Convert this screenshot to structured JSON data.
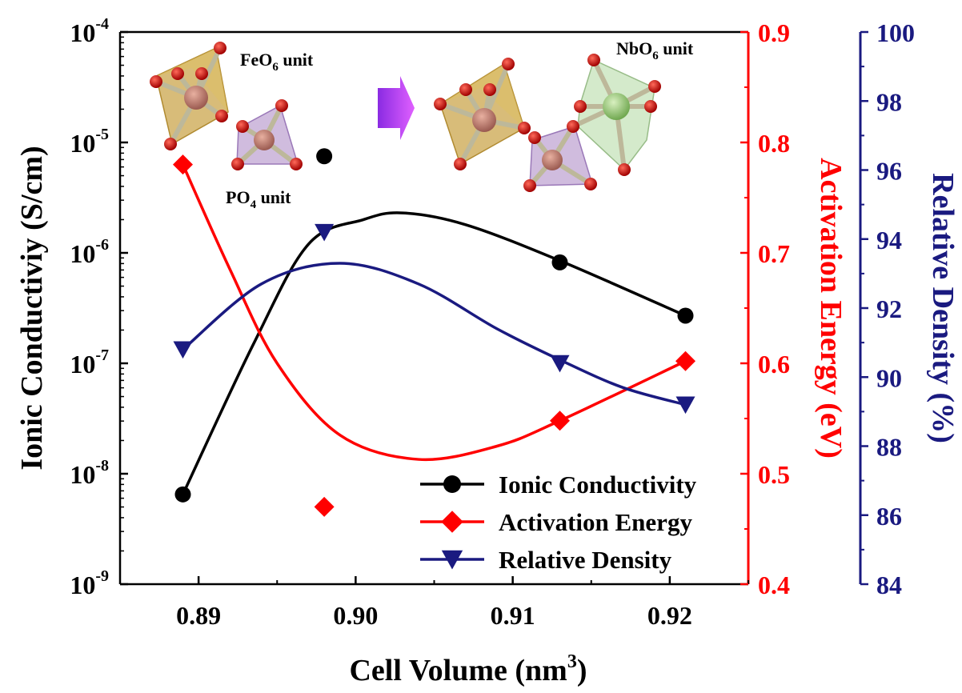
{
  "chart_data": {
    "type": "line",
    "xlabel": "Cell Volume (nm",
    "xlabel_sup": "3",
    "xlabel_end": ")",
    "xlim": [
      0.885,
      0.925
    ],
    "x_ticks": [
      "0.89",
      "0.90",
      "0.91",
      "0.92"
    ],
    "x_tick_values": [
      0.89,
      0.9,
      0.91,
      0.92
    ],
    "y_left": {
      "label": "Ionic Conductiviy (S/cm)",
      "scale": "log",
      "lim": [
        1e-09,
        0.0001
      ],
      "ticks": [
        {
          "base": "10",
          "exp": "-9",
          "value": 1e-09
        },
        {
          "base": "10",
          "exp": "-8",
          "value": 1e-08
        },
        {
          "base": "10",
          "exp": "-7",
          "value": 1e-07
        },
        {
          "base": "10",
          "exp": "-6",
          "value": 1e-06
        },
        {
          "base": "10",
          "exp": "-5",
          "value": 1e-05
        },
        {
          "base": "10",
          "exp": "-4",
          "value": 0.0001
        }
      ],
      "color": "#000000"
    },
    "y_right1": {
      "label": "Activation Energy (eV)",
      "lim": [
        0.4,
        0.9
      ],
      "ticks": [
        "0.4",
        "0.5",
        "0.6",
        "0.7",
        "0.8",
        "0.9"
      ],
      "tick_values": [
        0.4,
        0.5,
        0.6,
        0.7,
        0.8,
        0.9
      ],
      "color": "#ff0000"
    },
    "y_right2": {
      "label": "Relative Density (%)",
      "lim": [
        84,
        100
      ],
      "ticks": [
        "84",
        "86",
        "88",
        "90",
        "92",
        "94",
        "96",
        "98",
        "100"
      ],
      "tick_values": [
        84,
        86,
        88,
        90,
        92,
        94,
        96,
        98,
        100
      ],
      "color": "#1a1a80"
    },
    "series": [
      {
        "name": "Ionic Conductivity",
        "axis": "left",
        "marker": "circle",
        "color": "#000000",
        "points": [
          {
            "x": 0.889,
            "y": 6.5e-09
          },
          {
            "x": 0.898,
            "y": 7.5e-06
          },
          {
            "x": 0.913,
            "y": 8.2e-07
          },
          {
            "x": 0.921,
            "y": 2.7e-07
          }
        ],
        "fit_curve": [
          {
            "x": 0.889,
            "y": 6.5e-09
          },
          {
            "x": 0.8935,
            "y": 1.5e-07
          },
          {
            "x": 0.897,
            "y": 1.2e-06
          },
          {
            "x": 0.9005,
            "y": 2e-06
          },
          {
            "x": 0.903,
            "y": 2.3e-06
          },
          {
            "x": 0.907,
            "y": 1.8e-06
          },
          {
            "x": 0.913,
            "y": 8.5e-07
          },
          {
            "x": 0.921,
            "y": 2.7e-07
          }
        ]
      },
      {
        "name": "Activation Energy",
        "axis": "right1",
        "marker": "diamond",
        "color": "#ff0000",
        "points": [
          {
            "x": 0.889,
            "y": 0.78
          },
          {
            "x": 0.898,
            "y": 0.47
          },
          {
            "x": 0.913,
            "y": 0.548
          },
          {
            "x": 0.921,
            "y": 0.602
          }
        ],
        "fit_curve": [
          {
            "x": 0.889,
            "y": 0.78
          },
          {
            "x": 0.892,
            "y": 0.685
          },
          {
            "x": 0.895,
            "y": 0.6
          },
          {
            "x": 0.899,
            "y": 0.535
          },
          {
            "x": 0.904,
            "y": 0.513
          },
          {
            "x": 0.909,
            "y": 0.525
          },
          {
            "x": 0.913,
            "y": 0.548
          },
          {
            "x": 0.921,
            "y": 0.602
          }
        ]
      },
      {
        "name": "Relative Density",
        "axis": "right2",
        "marker": "triangle-down",
        "color": "#1a1a80",
        "points": [
          {
            "x": 0.889,
            "y": 90.8
          },
          {
            "x": 0.898,
            "y": 94.2
          },
          {
            "x": 0.913,
            "y": 90.4
          },
          {
            "x": 0.921,
            "y": 89.2
          }
        ],
        "fit_curve": [
          {
            "x": 0.889,
            "y": 90.8
          },
          {
            "x": 0.894,
            "y": 92.7
          },
          {
            "x": 0.899,
            "y": 93.3
          },
          {
            "x": 0.904,
            "y": 92.7
          },
          {
            "x": 0.909,
            "y": 91.4
          },
          {
            "x": 0.913,
            "y": 90.5
          },
          {
            "x": 0.917,
            "y": 89.7
          },
          {
            "x": 0.921,
            "y": 89.2
          }
        ]
      }
    ],
    "legend": {
      "placement": "bottom-right",
      "entries": [
        "Ionic Conductivity",
        "Activation Energy",
        "Relative Density"
      ]
    },
    "annotations": [
      {
        "text": "FeO",
        "sub": "6",
        "tail": " unit"
      },
      {
        "text": "NbO",
        "sub": "6",
        "tail": " unit"
      },
      {
        "text": "PO",
        "sub": "4",
        "tail": " unit"
      }
    ],
    "grid": false
  }
}
